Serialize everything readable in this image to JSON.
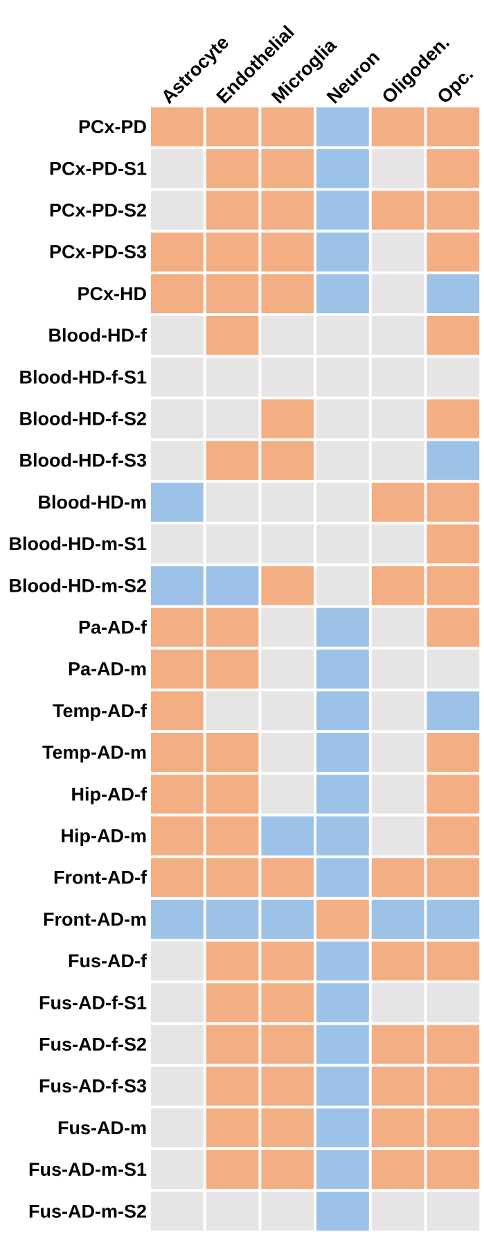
{
  "chart_data": {
    "type": "heatmap",
    "title": "",
    "xlabel": "",
    "ylabel": "",
    "legend": "none",
    "grid": false,
    "columns": [
      "Astrocyte",
      "Endothelial",
      "Microglia",
      "Neuron",
      "Oligoden.",
      "Opc."
    ],
    "rows": [
      "PCx-PD",
      "PCx-PD-S1",
      "PCx-PD-S2",
      "PCx-PD-S3",
      "PCx-HD",
      "Blood-HD-f",
      "Blood-HD-f-S1",
      "Blood-HD-f-S2",
      "Blood-HD-f-S3",
      "Blood-HD-m",
      "Blood-HD-m-S1",
      "Blood-HD-m-S2",
      "Pa-AD-f",
      "Pa-AD-m",
      "Temp-AD-f",
      "Temp-AD-m",
      "Hip-AD-f",
      "Hip-AD-m",
      "Front-AD-f",
      "Front-AD-m",
      "Fus-AD-f",
      "Fus-AD-f-S1",
      "Fus-AD-f-S2",
      "Fus-AD-f-S3",
      "Fus-AD-m",
      "Fus-AD-m-S1",
      "Fus-AD-m-S2"
    ],
    "values": [
      [
        1,
        1,
        1,
        -1,
        1,
        1
      ],
      [
        0,
        1,
        1,
        -1,
        0,
        1
      ],
      [
        0,
        1,
        1,
        -1,
        1,
        1
      ],
      [
        1,
        1,
        1,
        -1,
        0,
        1
      ],
      [
        1,
        1,
        1,
        -1,
        0,
        -1
      ],
      [
        0,
        1,
        0,
        0,
        0,
        1
      ],
      [
        0,
        0,
        0,
        0,
        0,
        0
      ],
      [
        0,
        0,
        1,
        0,
        0,
        1
      ],
      [
        0,
        1,
        1,
        0,
        0,
        -1
      ],
      [
        -1,
        0,
        0,
        0,
        1,
        1
      ],
      [
        0,
        0,
        0,
        0,
        0,
        1
      ],
      [
        -1,
        -1,
        1,
        0,
        1,
        1
      ],
      [
        1,
        1,
        0,
        -1,
        0,
        1
      ],
      [
        1,
        1,
        0,
        -1,
        0,
        0
      ],
      [
        1,
        0,
        0,
        -1,
        0,
        -1
      ],
      [
        1,
        1,
        0,
        -1,
        0,
        1
      ],
      [
        1,
        1,
        0,
        -1,
        0,
        1
      ],
      [
        1,
        1,
        -1,
        -1,
        0,
        1
      ],
      [
        1,
        1,
        1,
        -1,
        1,
        1
      ],
      [
        -1,
        -1,
        -1,
        1,
        -1,
        -1
      ],
      [
        0,
        1,
        1,
        -1,
        1,
        1
      ],
      [
        0,
        1,
        1,
        -1,
        0,
        0
      ],
      [
        0,
        1,
        1,
        -1,
        1,
        1
      ],
      [
        0,
        1,
        1,
        -1,
        1,
        1
      ],
      [
        0,
        1,
        1,
        -1,
        1,
        1
      ],
      [
        0,
        1,
        1,
        -1,
        1,
        1
      ],
      [
        0,
        0,
        0,
        -1,
        0,
        0
      ]
    ],
    "colors": {
      "1": "#F4AE84",
      "-1": "#9DC2E7",
      "0": "#E6E4E4"
    }
  }
}
